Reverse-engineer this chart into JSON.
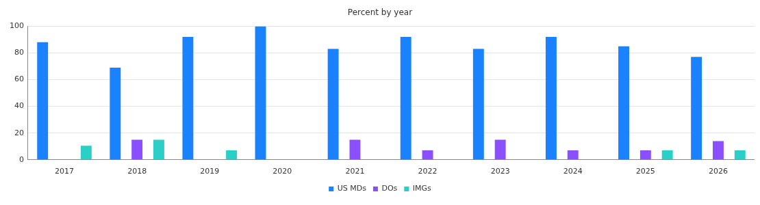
{
  "chart_data": {
    "type": "bar",
    "title": "Percent by year",
    "categories": [
      "2017",
      "2018",
      "2019",
      "2020",
      "2021",
      "2022",
      "2023",
      "2024",
      "2025",
      "2026"
    ],
    "series": [
      {
        "name": "US MDs",
        "color": "#1a82ff",
        "values": [
          88,
          69,
          92,
          100,
          83,
          92,
          83,
          92,
          85,
          77
        ]
      },
      {
        "name": "DOs",
        "color": "#8a4fff",
        "values": [
          null,
          15,
          null,
          null,
          15,
          7,
          15,
          7,
          7,
          14
        ]
      },
      {
        "name": "IMGs",
        "color": "#2ccfc8",
        "values": [
          10.5,
          15,
          7,
          null,
          null,
          null,
          null,
          null,
          7,
          7
        ]
      }
    ],
    "ylim": [
      0,
      100
    ],
    "yticks": [
      0,
      20,
      40,
      60,
      80,
      100
    ],
    "grid": "y",
    "legend": "bottom"
  }
}
